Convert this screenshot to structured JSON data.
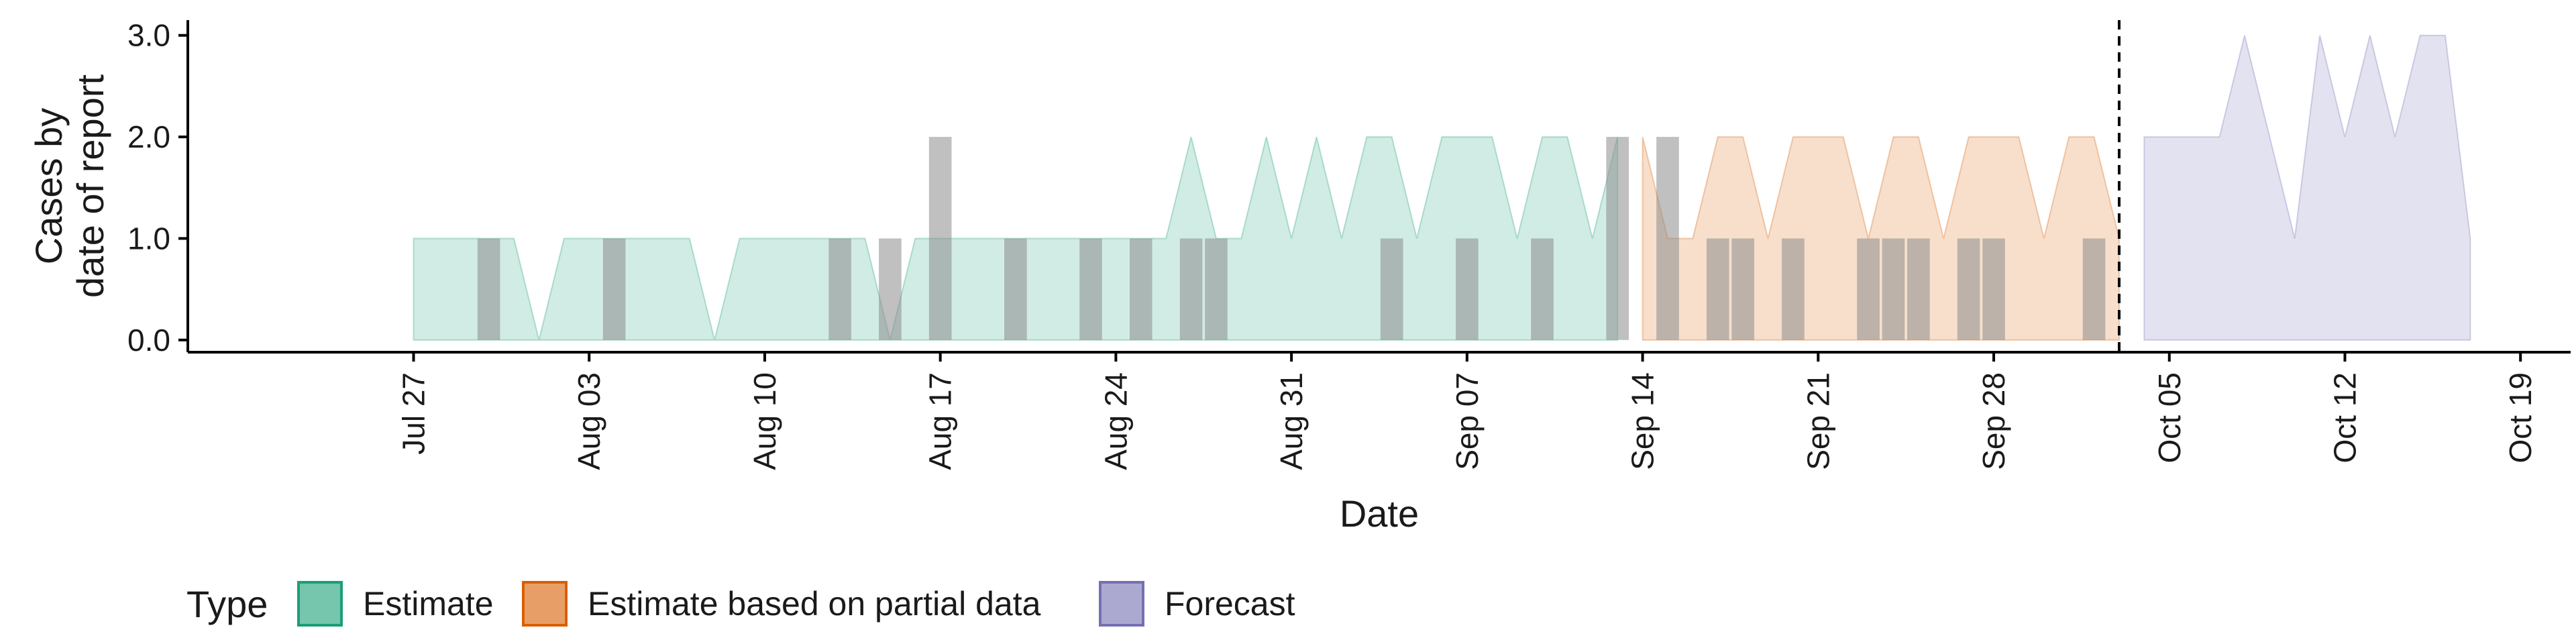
{
  "chart_data": {
    "type": "area",
    "xlabel": "Date",
    "ylabel": [
      "Cases by",
      "date of report"
    ],
    "x_domain": [
      "2020-07-18",
      "2020-10-21"
    ],
    "ylim": [
      -0.12,
      3.15
    ],
    "y_ticks": [
      0,
      1,
      2,
      3
    ],
    "y_tick_labels": [
      "0.0",
      "1.0",
      "2.0",
      "3.0"
    ],
    "x_ticks": [
      "2020-07-27",
      "2020-08-03",
      "2020-08-10",
      "2020-08-17",
      "2020-08-24",
      "2020-08-31",
      "2020-09-07",
      "2020-09-14",
      "2020-09-21",
      "2020-09-28",
      "2020-10-05",
      "2020-10-12",
      "2020-10-19"
    ],
    "x_tick_labels": [
      "Jul 27",
      "Aug 03",
      "Aug 10",
      "Aug 17",
      "Aug 24",
      "Aug 31",
      "Sep 07",
      "Sep 14",
      "Sep 21",
      "Sep 28",
      "Oct 05",
      "Oct 12",
      "Oct 19"
    ],
    "forecast_date": "2020-10-03",
    "grid": false,
    "legend": {
      "title": "Type",
      "position": "bottom-left",
      "items": [
        {
          "label": "Estimate",
          "fill": "#1b9e77",
          "stroke": "#1b9e77"
        },
        {
          "label": "Estimate based on partial data",
          "fill": "#d95f02",
          "stroke": "#d95f02"
        },
        {
          "label": "Forecast",
          "fill": "#7570b3",
          "stroke": "#7570b3"
        }
      ]
    },
    "series": [
      {
        "name": "Estimate",
        "color": "#1b9e77",
        "points": [
          [
            "2020-07-27",
            1
          ],
          [
            "2020-07-28",
            1
          ],
          [
            "2020-07-29",
            1
          ],
          [
            "2020-07-30",
            1
          ],
          [
            "2020-07-31",
            1
          ],
          [
            "2020-08-01",
            0
          ],
          [
            "2020-08-02",
            1
          ],
          [
            "2020-08-03",
            1
          ],
          [
            "2020-08-04",
            1
          ],
          [
            "2020-08-05",
            1
          ],
          [
            "2020-08-06",
            1
          ],
          [
            "2020-08-07",
            1
          ],
          [
            "2020-08-08",
            0
          ],
          [
            "2020-08-09",
            1
          ],
          [
            "2020-08-10",
            1
          ],
          [
            "2020-08-11",
            1
          ],
          [
            "2020-08-12",
            1
          ],
          [
            "2020-08-13",
            1
          ],
          [
            "2020-08-14",
            1
          ],
          [
            "2020-08-15",
            0
          ],
          [
            "2020-08-16",
            1
          ],
          [
            "2020-08-17",
            1
          ],
          [
            "2020-08-18",
            1
          ],
          [
            "2020-08-19",
            1
          ],
          [
            "2020-08-20",
            1
          ],
          [
            "2020-08-21",
            1
          ],
          [
            "2020-08-22",
            1
          ],
          [
            "2020-08-23",
            1
          ],
          [
            "2020-08-24",
            1
          ],
          [
            "2020-08-25",
            1
          ],
          [
            "2020-08-26",
            1
          ],
          [
            "2020-08-27",
            2
          ],
          [
            "2020-08-28",
            1
          ],
          [
            "2020-08-29",
            1
          ],
          [
            "2020-08-30",
            2
          ],
          [
            "2020-08-31",
            1
          ],
          [
            "2020-09-01",
            2
          ],
          [
            "2020-09-02",
            1
          ],
          [
            "2020-09-03",
            2
          ],
          [
            "2020-09-04",
            2
          ],
          [
            "2020-09-05",
            1
          ],
          [
            "2020-09-06",
            2
          ],
          [
            "2020-09-07",
            2
          ],
          [
            "2020-09-08",
            2
          ],
          [
            "2020-09-09",
            1
          ],
          [
            "2020-09-10",
            2
          ],
          [
            "2020-09-11",
            2
          ],
          [
            "2020-09-12",
            1
          ],
          [
            "2020-09-13",
            2
          ]
        ]
      },
      {
        "name": "Estimate based on partial data",
        "color": "#d95f02",
        "points": [
          [
            "2020-09-14",
            2
          ],
          [
            "2020-09-15",
            1
          ],
          [
            "2020-09-16",
            1
          ],
          [
            "2020-09-17",
            2
          ],
          [
            "2020-09-18",
            2
          ],
          [
            "2020-09-19",
            1
          ],
          [
            "2020-09-20",
            2
          ],
          [
            "2020-09-21",
            2
          ],
          [
            "2020-09-22",
            2
          ],
          [
            "2020-09-23",
            1
          ],
          [
            "2020-09-24",
            2
          ],
          [
            "2020-09-25",
            2
          ],
          [
            "2020-09-26",
            1
          ],
          [
            "2020-09-27",
            2
          ],
          [
            "2020-09-28",
            2
          ],
          [
            "2020-09-29",
            2
          ],
          [
            "2020-09-30",
            1
          ],
          [
            "2020-10-01",
            2
          ],
          [
            "2020-10-02",
            2
          ],
          [
            "2020-10-03",
            1
          ]
        ]
      },
      {
        "name": "Forecast",
        "color": "#7570b3",
        "points": [
          [
            "2020-10-04",
            2
          ],
          [
            "2020-10-05",
            2
          ],
          [
            "2020-10-06",
            2
          ],
          [
            "2020-10-07",
            2
          ],
          [
            "2020-10-08",
            3
          ],
          [
            "2020-10-09",
            2
          ],
          [
            "2020-10-10",
            1
          ],
          [
            "2020-10-11",
            3
          ],
          [
            "2020-10-12",
            2
          ],
          [
            "2020-10-13",
            3
          ],
          [
            "2020-10-14",
            2
          ],
          [
            "2020-10-15",
            3
          ],
          [
            "2020-10-16",
            3
          ],
          [
            "2020-10-17",
            1
          ]
        ]
      }
    ],
    "reported_cases": {
      "color": "#8c8c8c",
      "bars": [
        [
          "2020-07-30",
          1
        ],
        [
          "2020-08-04",
          1
        ],
        [
          "2020-08-13",
          1
        ],
        [
          "2020-08-15",
          1
        ],
        [
          "2020-08-17",
          2
        ],
        [
          "2020-08-20",
          1
        ],
        [
          "2020-08-23",
          1
        ],
        [
          "2020-08-25",
          1
        ],
        [
          "2020-08-27",
          1
        ],
        [
          "2020-08-28",
          1
        ],
        [
          "2020-09-04",
          1
        ],
        [
          "2020-09-07",
          1
        ],
        [
          "2020-09-10",
          1
        ],
        [
          "2020-09-13",
          2
        ],
        [
          "2020-09-15",
          2
        ],
        [
          "2020-09-17",
          1
        ],
        [
          "2020-09-18",
          1
        ],
        [
          "2020-09-20",
          1
        ],
        [
          "2020-09-23",
          1
        ],
        [
          "2020-09-24",
          1
        ],
        [
          "2020-09-25",
          1
        ],
        [
          "2020-09-27",
          1
        ],
        [
          "2020-09-28",
          1
        ],
        [
          "2020-10-02",
          1
        ]
      ]
    }
  }
}
